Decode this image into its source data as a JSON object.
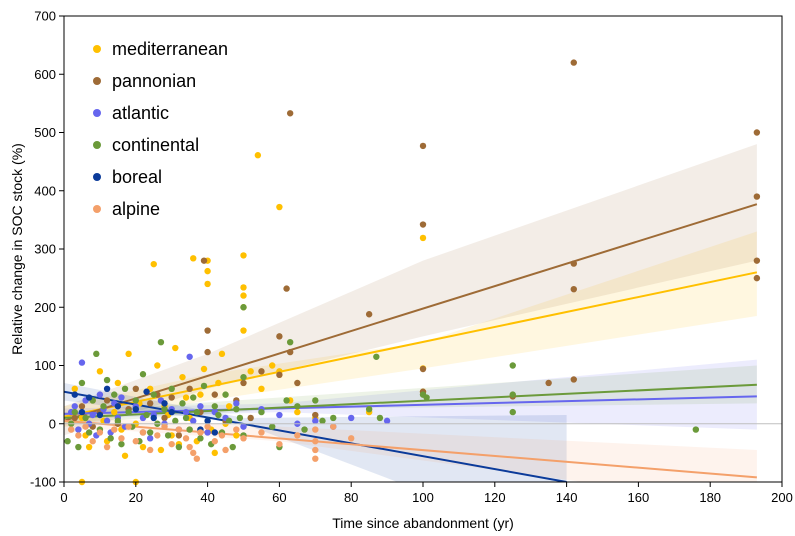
{
  "chart_data": {
    "type": "scatter",
    "xlabel": "Time since abandonment (yr)",
    "ylabel": "Relative change in SOC stock (%)",
    "xlim": [
      0,
      200
    ],
    "ylim": [
      -100,
      700
    ],
    "xticks": [
      0,
      20,
      40,
      60,
      80,
      100,
      120,
      140,
      160,
      180,
      200
    ],
    "yticks": [
      -100,
      0,
      100,
      200,
      300,
      400,
      500,
      600,
      700
    ],
    "grid": false,
    "legend_position": "top-left",
    "series": [
      {
        "name": "mediterranean",
        "color": "#FFC000",
        "points": [
          [
            5,
            -100
          ],
          [
            20,
            -100
          ],
          [
            3,
            60
          ],
          [
            5,
            10
          ],
          [
            6,
            -20
          ],
          [
            8,
            40
          ],
          [
            10,
            90
          ],
          [
            12,
            -30
          ],
          [
            14,
            20
          ],
          [
            15,
            70
          ],
          [
            16,
            -10
          ],
          [
            18,
            120
          ],
          [
            20,
            0
          ],
          [
            22,
            -40
          ],
          [
            24,
            60
          ],
          [
            25,
            274
          ],
          [
            26,
            100
          ],
          [
            28,
            30
          ],
          [
            30,
            -20
          ],
          [
            31,
            130
          ],
          [
            33,
            80
          ],
          [
            35,
            10
          ],
          [
            36,
            284
          ],
          [
            37,
            -30
          ],
          [
            38,
            50
          ],
          [
            39,
            94
          ],
          [
            40,
            280
          ],
          [
            40,
            262
          ],
          [
            40,
            240
          ],
          [
            41,
            -10
          ],
          [
            43,
            70
          ],
          [
            45,
            0
          ],
          [
            46,
            30
          ],
          [
            48,
            -20
          ],
          [
            50,
            289
          ],
          [
            50,
            234
          ],
          [
            50,
            220
          ],
          [
            50,
            200
          ],
          [
            50,
            160
          ],
          [
            52,
            90
          ],
          [
            54,
            461
          ],
          [
            55,
            60
          ],
          [
            58,
            100
          ],
          [
            60,
            372
          ],
          [
            60,
            90
          ],
          [
            63,
            40
          ],
          [
            65,
            20
          ],
          [
            70,
            10
          ],
          [
            85,
            20
          ],
          [
            100,
            319
          ],
          [
            100,
            95
          ],
          [
            100,
            55
          ],
          [
            7,
            -40
          ],
          [
            11,
            5
          ],
          [
            17,
            -55
          ],
          [
            21,
            35
          ],
          [
            27,
            -45
          ],
          [
            29,
            15
          ],
          [
            32,
            -35
          ],
          [
            34,
            45
          ],
          [
            42,
            -50
          ],
          [
            44,
            120
          ]
        ],
        "fit": [
          [
            0,
            12
          ],
          [
            193,
            260
          ]
        ],
        "band_low": [
          [
            0,
            -5
          ],
          [
            40,
            40
          ],
          [
            100,
            95
          ],
          [
            193,
            185
          ]
        ],
        "band_high": [
          [
            0,
            30
          ],
          [
            40,
            85
          ],
          [
            100,
            140
          ],
          [
            193,
            330
          ]
        ]
      },
      {
        "name": "pannonian",
        "color": "#9E6B36",
        "points": [
          [
            3,
            10
          ],
          [
            5,
            30
          ],
          [
            8,
            -5
          ],
          [
            10,
            20
          ],
          [
            12,
            40
          ],
          [
            15,
            0
          ],
          [
            18,
            25
          ],
          [
            20,
            60
          ],
          [
            22,
            -15
          ],
          [
            24,
            35
          ],
          [
            26,
            50
          ],
          [
            28,
            10
          ],
          [
            30,
            45
          ],
          [
            32,
            -20
          ],
          [
            35,
            60
          ],
          [
            38,
            20
          ],
          [
            39,
            280
          ],
          [
            40,
            160
          ],
          [
            40,
            123
          ],
          [
            42,
            50
          ],
          [
            45,
            5
          ],
          [
            48,
            40
          ],
          [
            50,
            70
          ],
          [
            52,
            10
          ],
          [
            55,
            90
          ],
          [
            60,
            150
          ],
          [
            60,
            84
          ],
          [
            62,
            232
          ],
          [
            63,
            533
          ],
          [
            63,
            123
          ],
          [
            65,
            70
          ],
          [
            70,
            15
          ],
          [
            85,
            188
          ],
          [
            100,
            477
          ],
          [
            100,
            342
          ],
          [
            100,
            94
          ],
          [
            100,
            55
          ],
          [
            125,
            47
          ],
          [
            135,
            70
          ],
          [
            142,
            620
          ],
          [
            142,
            275
          ],
          [
            142,
            231
          ],
          [
            142,
            76
          ],
          [
            193,
            500
          ],
          [
            193,
            390
          ],
          [
            193,
            280
          ],
          [
            193,
            250
          ]
        ],
        "fit": [
          [
            0,
            5
          ],
          [
            193,
            377
          ]
        ],
        "band_low": [
          [
            0,
            -20
          ],
          [
            40,
            60
          ],
          [
            100,
            150
          ],
          [
            193,
            280
          ]
        ],
        "band_high": [
          [
            0,
            30
          ],
          [
            40,
            120
          ],
          [
            100,
            280
          ],
          [
            193,
            480
          ]
        ]
      },
      {
        "name": "atlantic",
        "color": "#6666EE",
        "points": [
          [
            2,
            20
          ],
          [
            3,
            30
          ],
          [
            4,
            -10
          ],
          [
            5,
            105
          ],
          [
            6,
            40
          ],
          [
            7,
            0
          ],
          [
            8,
            15
          ],
          [
            9,
            -20
          ],
          [
            10,
            50
          ],
          [
            11,
            25
          ],
          [
            12,
            5
          ],
          [
            13,
            -15
          ],
          [
            14,
            35
          ],
          [
            15,
            10
          ],
          [
            16,
            45
          ],
          [
            17,
            -5
          ],
          [
            18,
            20
          ],
          [
            20,
            30
          ],
          [
            22,
            10
          ],
          [
            24,
            -25
          ],
          [
            25,
            15
          ],
          [
            27,
            40
          ],
          [
            28,
            0
          ],
          [
            30,
            25
          ],
          [
            32,
            -10
          ],
          [
            34,
            20
          ],
          [
            35,
            115
          ],
          [
            36,
            5
          ],
          [
            38,
            30
          ],
          [
            40,
            -15
          ],
          [
            42,
            20
          ],
          [
            45,
            10
          ],
          [
            48,
            35
          ],
          [
            50,
            -5
          ],
          [
            55,
            25
          ],
          [
            60,
            15
          ],
          [
            65,
            0
          ],
          [
            70,
            5
          ],
          [
            75,
            -5
          ],
          [
            80,
            10
          ],
          [
            90,
            5
          ]
        ],
        "fit": [
          [
            0,
            17
          ],
          [
            193,
            47
          ]
        ],
        "band_low": [
          [
            0,
            8
          ],
          [
            60,
            20
          ],
          [
            193,
            -10
          ]
        ],
        "band_high": [
          [
            0,
            26
          ],
          [
            60,
            35
          ],
          [
            193,
            110
          ]
        ]
      },
      {
        "name": "continental",
        "color": "#6B9A3A",
        "points": [
          [
            1,
            -30
          ],
          [
            2,
            0
          ],
          [
            3,
            20
          ],
          [
            4,
            -40
          ],
          [
            5,
            70
          ],
          [
            6,
            10
          ],
          [
            7,
            -15
          ],
          [
            8,
            40
          ],
          [
            9,
            120
          ],
          [
            10,
            -10
          ],
          [
            11,
            30
          ],
          [
            12,
            75
          ],
          [
            13,
            -25
          ],
          [
            14,
            50
          ],
          [
            15,
            5
          ],
          [
            16,
            -35
          ],
          [
            17,
            60
          ],
          [
            18,
            20
          ],
          [
            19,
            -5
          ],
          [
            20,
            40
          ],
          [
            21,
            -30
          ],
          [
            22,
            85
          ],
          [
            23,
            15
          ],
          [
            24,
            -15
          ],
          [
            25,
            50
          ],
          [
            26,
            0
          ],
          [
            27,
            140
          ],
          [
            28,
            25
          ],
          [
            29,
            -20
          ],
          [
            30,
            60
          ],
          [
            31,
            5
          ],
          [
            32,
            -40
          ],
          [
            33,
            35
          ],
          [
            34,
            10
          ],
          [
            35,
            -10
          ],
          [
            36,
            45
          ],
          [
            37,
            20
          ],
          [
            38,
            -25
          ],
          [
            39,
            65
          ],
          [
            40,
            5
          ],
          [
            41,
            -35
          ],
          [
            42,
            30
          ],
          [
            43,
            15
          ],
          [
            44,
            -15
          ],
          [
            45,
            50
          ],
          [
            46,
            5
          ],
          [
            47,
            -40
          ],
          [
            48,
            25
          ],
          [
            49,
            10
          ],
          [
            50,
            80
          ],
          [
            50,
            200
          ],
          [
            50,
            -20
          ],
          [
            55,
            20
          ],
          [
            58,
            -5
          ],
          [
            60,
            -40
          ],
          [
            62,
            40
          ],
          [
            63,
            140
          ],
          [
            65,
            30
          ],
          [
            67,
            -10
          ],
          [
            70,
            40
          ],
          [
            72,
            5
          ],
          [
            75,
            10
          ],
          [
            85,
            25
          ],
          [
            87,
            115
          ],
          [
            88,
            10
          ],
          [
            100,
            50
          ],
          [
            101,
            45
          ],
          [
            125,
            100
          ],
          [
            125,
            50
          ],
          [
            125,
            20
          ],
          [
            176,
            -10
          ]
        ],
        "fit": [
          [
            0,
            10
          ],
          [
            193,
            67
          ]
        ],
        "band_low": [
          [
            0,
            0
          ],
          [
            60,
            25
          ],
          [
            193,
            35
          ]
        ],
        "band_high": [
          [
            0,
            20
          ],
          [
            60,
            45
          ],
          [
            193,
            100
          ]
        ]
      },
      {
        "name": "boreal",
        "color": "#0B3B9A",
        "points": [
          [
            3,
            50
          ],
          [
            5,
            20
          ],
          [
            7,
            45
          ],
          [
            10,
            15
          ],
          [
            12,
            60
          ],
          [
            15,
            30
          ],
          [
            20,
            25
          ],
          [
            23,
            55
          ],
          [
            25,
            10
          ],
          [
            28,
            35
          ],
          [
            30,
            20
          ],
          [
            38,
            -10
          ],
          [
            40,
            5
          ],
          [
            42,
            -15
          ]
        ],
        "fit": [
          [
            0,
            55
          ],
          [
            140,
            -100
          ]
        ],
        "band_low": [
          [
            0,
            40
          ],
          [
            50,
            0
          ],
          [
            140,
            -210
          ]
        ],
        "band_high": [
          [
            0,
            70
          ],
          [
            50,
            10
          ],
          [
            140,
            15
          ]
        ]
      },
      {
        "name": "alpine",
        "color": "#F4A06A",
        "points": [
          [
            2,
            -10
          ],
          [
            4,
            -20
          ],
          [
            6,
            -5
          ],
          [
            8,
            -30
          ],
          [
            10,
            -15
          ],
          [
            12,
            -40
          ],
          [
            14,
            -10
          ],
          [
            16,
            -25
          ],
          [
            18,
            -5
          ],
          [
            20,
            -30
          ],
          [
            22,
            -15
          ],
          [
            24,
            -45
          ],
          [
            26,
            -20
          ],
          [
            28,
            -5
          ],
          [
            30,
            -35
          ],
          [
            32,
            -10
          ],
          [
            34,
            -25
          ],
          [
            36,
            -50
          ],
          [
            38,
            -15
          ],
          [
            40,
            -5
          ],
          [
            42,
            -30
          ],
          [
            44,
            -20
          ],
          [
            45,
            -45
          ],
          [
            48,
            -10
          ],
          [
            50,
            -25
          ],
          [
            55,
            -15
          ],
          [
            60,
            -35
          ],
          [
            65,
            -20
          ],
          [
            70,
            -10
          ],
          [
            70,
            -30
          ],
          [
            70,
            -45
          ],
          [
            70,
            -60
          ],
          [
            75,
            -5
          ],
          [
            80,
            -25
          ],
          [
            35,
            -40
          ],
          [
            37,
            -60
          ]
        ],
        "fit": [
          [
            0,
            5
          ],
          [
            193,
            -92
          ]
        ],
        "band_low": [
          [
            0,
            -5
          ],
          [
            60,
            -30
          ],
          [
            193,
            -140
          ]
        ],
        "band_high": [
          [
            0,
            12
          ],
          [
            60,
            -5
          ],
          [
            193,
            -45
          ]
        ]
      }
    ]
  }
}
